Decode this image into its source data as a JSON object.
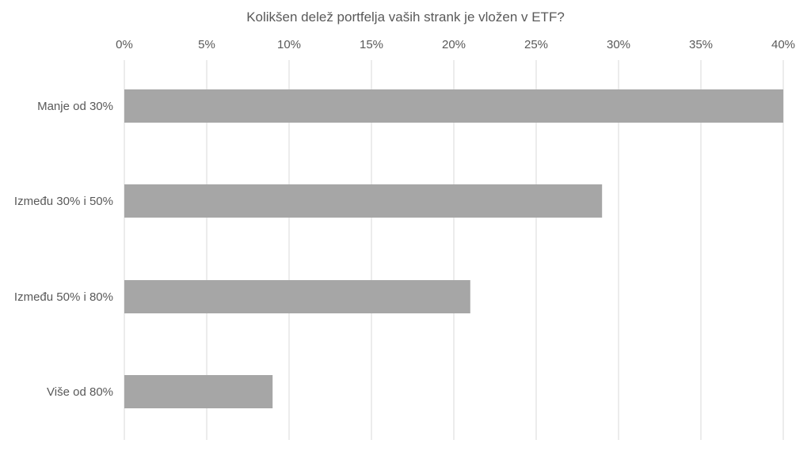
{
  "chart_data": {
    "type": "bar",
    "orientation": "horizontal",
    "title": "Kolikšen delež portfelja vaših strank je vložen v ETF?",
    "xlabel": "",
    "ylabel": "",
    "categories": [
      "Manje od 30%",
      "Između 30% i 50%",
      "Između 50% i 80%",
      "Više od 80%"
    ],
    "values": [
      40,
      29,
      21,
      9
    ],
    "x_unit": "%",
    "xlim": [
      0,
      40
    ],
    "x_ticks": [
      0,
      5,
      10,
      15,
      20,
      25,
      30,
      35,
      40
    ],
    "x_tick_labels": [
      "0%",
      "5%",
      "10%",
      "15%",
      "20%",
      "25%",
      "30%",
      "35%",
      "40%"
    ],
    "x_axis_position": "top",
    "grid": true,
    "legend": "none",
    "bar_color": "#a6a6a6",
    "grid_color": "#d9d9d9"
  }
}
